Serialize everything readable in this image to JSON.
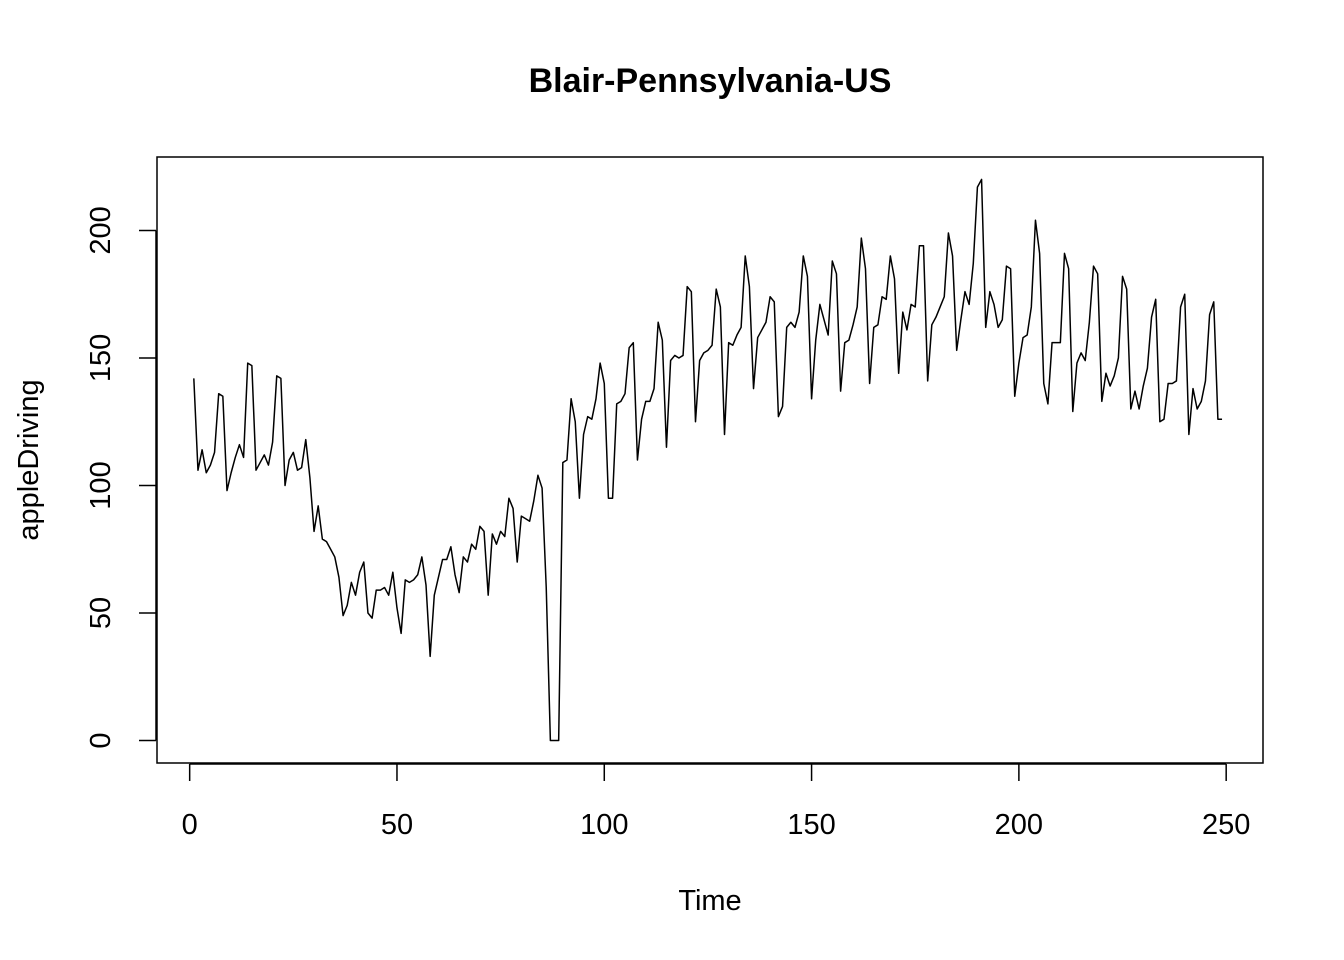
{
  "chart_data": {
    "type": "line",
    "title": "Blair-Pennsylvania-US",
    "xlabel": "Time",
    "ylabel": "appleDriving",
    "xlim": [
      -7.88,
      258.88
    ],
    "ylim": [
      -8.8,
      228.8
    ],
    "xticks": [
      0,
      50,
      100,
      150,
      200,
      250
    ],
    "yticks": [
      0,
      50,
      100,
      150,
      200
    ],
    "grid": false,
    "series": [
      {
        "x_start": 1,
        "values": [
          142,
          106,
          114,
          105,
          108,
          113,
          136,
          135,
          98,
          105,
          111,
          116,
          111,
          148,
          147,
          106,
          109,
          112,
          108,
          117,
          143,
          142,
          100,
          110,
          113,
          106,
          107,
          118,
          103,
          82,
          92,
          79,
          78,
          75,
          72,
          64,
          49,
          53,
          62,
          57,
          66,
          70,
          50,
          48,
          59,
          59,
          60,
          57,
          66,
          52,
          42,
          63,
          62,
          63,
          65,
          72,
          61,
          33,
          57,
          64,
          71,
          71,
          76,
          65,
          58,
          72,
          70,
          77,
          75,
          84,
          82,
          57,
          81,
          77,
          82,
          80,
          95,
          91,
          70,
          88,
          87,
          86,
          94,
          104,
          99,
          60,
          0,
          0,
          0,
          109,
          110,
          134,
          125,
          95,
          120,
          127,
          126,
          134,
          148,
          140,
          95,
          95,
          132,
          133,
          136,
          154,
          156,
          110,
          126,
          133,
          133,
          138,
          164,
          157,
          115,
          149,
          151,
          150,
          151,
          178,
          176,
          125,
          149,
          152,
          153,
          155,
          177,
          170,
          120,
          156,
          155,
          159,
          162,
          190,
          178,
          138,
          158,
          161,
          164,
          174,
          172,
          127,
          131,
          162,
          164,
          162,
          168,
          190,
          182,
          134,
          157,
          171,
          165,
          159,
          188,
          183,
          137,
          156,
          157,
          163,
          170,
          197,
          185,
          140,
          162,
          163,
          174,
          173,
          190,
          181,
          144,
          168,
          161,
          171,
          170,
          194,
          194,
          141,
          163,
          166,
          170,
          174,
          199,
          190,
          153,
          165,
          176,
          171,
          187,
          217,
          220,
          162,
          176,
          171,
          162,
          165,
          186,
          185,
          135,
          148,
          158,
          159,
          170,
          204,
          191,
          140,
          132,
          156,
          156,
          156,
          191,
          185,
          129,
          148,
          152,
          149,
          164,
          186,
          183,
          133,
          144,
          139,
          143,
          150,
          182,
          177,
          130,
          137,
          130,
          139,
          146,
          166,
          173,
          125,
          126,
          140,
          140,
          141,
          170,
          175,
          120,
          138,
          130,
          133,
          141,
          167,
          172,
          126,
          126
        ]
      }
    ]
  }
}
